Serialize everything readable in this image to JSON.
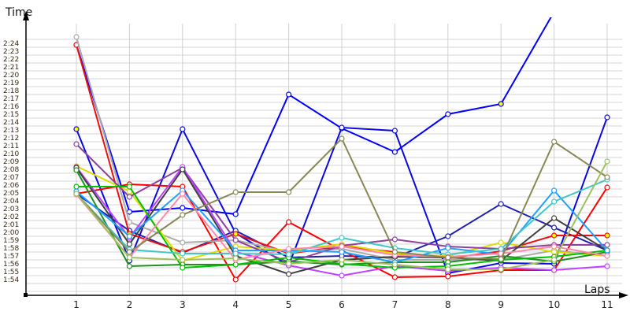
{
  "chart_data": {
    "type": "line",
    "xlabel": "Laps",
    "ylabel": "Time",
    "categories": [
      "1",
      "2",
      "3",
      "4",
      "5",
      "6",
      "7",
      "8",
      "9",
      "10",
      "11"
    ],
    "y_ticks": [
      "1:54",
      "1:55",
      "1:56",
      "1:57",
      "1:58",
      "1:59",
      "2:00",
      "2:01",
      "2:02",
      "2:03",
      "2:04",
      "2:05",
      "2:06",
      "2:07",
      "2:08",
      "2:09",
      "2:10",
      "2:11",
      "2:12",
      "2:13",
      "2:14",
      "2:15",
      "2:16",
      "2:17",
      "2:18",
      "2:19",
      "2:20",
      "2:21",
      "2:22",
      "2:23",
      "2:24"
    ],
    "ylim": [
      "1:54",
      "2:24"
    ],
    "grid": true,
    "legend": "none",
    "series": [
      {
        "color": "#0000ff",
        "highlight": [
          1,
          9
        ],
        "values": [
          "2:24.3",
          "2:03.1",
          "2:03.6",
          "2:02.8",
          "2:18.0",
          "2:13.7",
          "2:10.7",
          "2:15.5",
          "2:16.8",
          "2:28.5",
          null
        ]
      },
      {
        "color": "#0a0ae0",
        "highlight": [
          1
        ],
        "values": [
          "2:13.6",
          "1:56.9",
          "2:13.6",
          "2:00.4",
          "1:56.3",
          "2:13.8",
          "2:13.4",
          "1:55.3",
          "1:56.6",
          "1:56.5",
          "2:15.1"
        ]
      },
      {
        "color": "#2020b0",
        "highlight": [],
        "values": [
          "2:05.4",
          "2:00.7",
          "1:57.9",
          "2:00.7",
          "1:57.3",
          "1:57.5",
          "1:57.3",
          "2:00.0",
          "2:04.1",
          "2:01.1",
          "1:58.2"
        ]
      },
      {
        "color": "#ff0000",
        "highlight": [],
        "values": [
          "2:05.4",
          "2:06.6",
          "2:06.3",
          "1:54.5",
          "2:01.8",
          "1:58.2",
          "1:54.8",
          "1:54.9",
          "1:55.7",
          "1:55.7",
          "2:06.2"
        ]
      },
      {
        "color": "#ee1010",
        "highlight": [
          2,
          4,
          6,
          10,
          11
        ],
        "values": [
          "2:24.3",
          "2:00.3",
          "1:58.0",
          "2:00.3",
          "1:57.8",
          "1:58.7",
          "1:58.0",
          "1:57.2",
          "1:58.1",
          "2:00.1",
          "2:00.1"
        ]
      },
      {
        "color": "#aaaaaa",
        "highlight": [],
        "values": [
          "2:25.3",
          "1:61.8",
          "1:59.2",
          "1:59.5",
          "1:58.0",
          "1:58.4",
          "1:57.0",
          "1:57.0",
          "1:57.0",
          "1:58.2",
          "1:57.5"
        ]
      },
      {
        "color": "#dddd00",
        "highlight": [],
        "values": [
          "2:08.9",
          "2:05.7",
          "1:56.9",
          "1:58.7",
          "1:58.2",
          "1:59.0",
          "1:57.8",
          "1:57.5",
          "1:59.2",
          "1:58.0",
          "1:57.5"
        ]
      },
      {
        "color": "#9040a0",
        "highlight": [],
        "values": [
          "2:11.7",
          "2:05.0",
          "2:08.7",
          "1:59.5",
          "1:56.7",
          "1:58.8",
          "1:59.6",
          "1:58.7",
          "1:58.4",
          "1:58.9",
          "1:58.9"
        ]
      },
      {
        "color": "#c040ff",
        "highlight": [],
        "values": [
          "2:08.8",
          "1:59.8",
          "2:08.8",
          "1:58.0",
          "1:56.3",
          "1:55.0",
          "1:56.2",
          "1:55.6",
          "1:56.0",
          "1:55.7",
          "1:56.2"
        ]
      },
      {
        "color": "#404040",
        "highlight": [],
        "values": [
          "2:08.7",
          "1:59.0",
          "2:08.5",
          "1:57.5",
          "1:55.2",
          "1:57.0",
          "1:57.4",
          "1:57.3",
          "1:56.9",
          "2:02.3",
          "1:58.2"
        ]
      },
      {
        "color": "#209020",
        "highlight": [],
        "values": [
          "2:08.4",
          "1:56.2",
          "1:56.4",
          "1:56.4",
          "1:56.8",
          "1:56.4",
          "1:56.7",
          "1:56.7",
          "1:57.5",
          "1:56.8",
          "1:58.0"
        ]
      },
      {
        "color": "#00c000",
        "highlight": [],
        "values": [
          "2:06.3",
          "2:06.3",
          "1:56.0",
          "1:56.4",
          "1:57.3",
          "1:56.5",
          "1:56.0",
          "1:56.2",
          "1:57.0",
          "1:57.4",
          "1:58.2"
        ]
      },
      {
        "color": "#20a0ff",
        "highlight": [],
        "values": [
          "2:05.7",
          "2:00.0",
          "2:05.8",
          "1:58.2",
          "1:58.2",
          "1:58.0",
          "1:56.7",
          "1:58.5",
          "1:57.7",
          "2:05.8",
          "1:58.2"
        ]
      },
      {
        "color": "#40c8c8",
        "highlight": [],
        "values": [
          "2:05.4",
          "1:58.3",
          "1:57.8",
          "1:57.8",
          "1:57.7",
          "1:59.8",
          "1:58.5",
          "1:57.7",
          "1:58.4",
          "2:04.4",
          "2:07.2"
        ]
      },
      {
        "color": "#ff88aa",
        "highlight": [],
        "values": [
          "2:05.3",
          "1:57.3",
          "2:05.4",
          "1:57.0",
          "1:58.4",
          "1:58.7",
          "1:57.6",
          "1:57.4",
          "1:57.8",
          "1:58.7",
          "1:57.5"
        ]
      },
      {
        "color": "#888855",
        "highlight": [],
        "values": [
          "2:05.4",
          "1:58.0",
          "2:02.7",
          "2:05.6",
          "2:05.6",
          "2:12.4",
          "1:58.0",
          "1:57.3",
          "1:57.1",
          "2:12.0",
          "2:07.5"
        ]
      },
      {
        "color": "#a0c060",
        "highlight": [],
        "values": [
          "2:05.4",
          "1:57.3",
          "1:57.0",
          "1:57.2",
          "1:56.5",
          "1:57.0",
          "1:56.4",
          "1:55.8",
          "1:55.8",
          "1:57.0",
          "2:09.5"
        ]
      }
    ]
  }
}
